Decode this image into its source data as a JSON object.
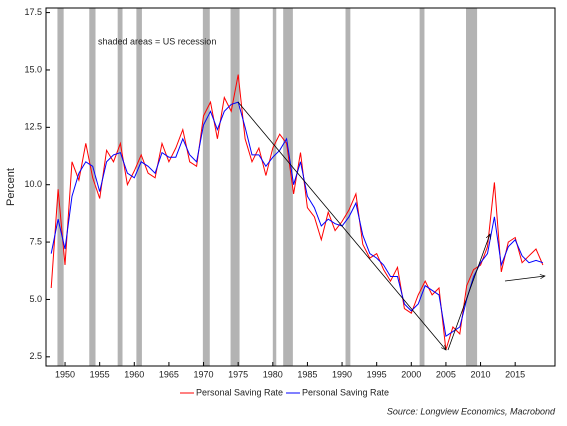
{
  "chart_data": {
    "type": "line",
    "y_label": "Percent",
    "annotation": "shaded areas = US recession",
    "source": "Source: Longview Economics, Macrobond",
    "x": [
      1948,
      1949,
      1950,
      1951,
      1952,
      1953,
      1954,
      1955,
      1956,
      1957,
      1958,
      1959,
      1960,
      1961,
      1962,
      1963,
      1964,
      1965,
      1966,
      1967,
      1968,
      1969,
      1970,
      1971,
      1972,
      1973,
      1974,
      1975,
      1976,
      1977,
      1978,
      1979,
      1980,
      1981,
      1982,
      1983,
      1984,
      1985,
      1986,
      1987,
      1988,
      1989,
      1990,
      1991,
      1992,
      1993,
      1994,
      1995,
      1996,
      1997,
      1998,
      1999,
      2000,
      2001,
      2002,
      2003,
      2004,
      2005,
      2006,
      2007,
      2008,
      2009,
      2010,
      2011,
      2012,
      2013,
      2014,
      2015,
      2016,
      2017,
      2018,
      2019
    ],
    "series": [
      {
        "name": "Personal Saving Rate",
        "color": "#ff0000",
        "values": [
          5.5,
          9.8,
          6.5,
          11.0,
          10.2,
          11.8,
          10.3,
          9.4,
          11.5,
          11.0,
          11.8,
          10.0,
          10.6,
          11.3,
          10.5,
          10.3,
          11.8,
          11.0,
          11.6,
          12.4,
          11.0,
          10.8,
          13.0,
          13.6,
          12.0,
          13.8,
          13.2,
          14.8,
          12.0,
          11.0,
          11.6,
          10.4,
          11.6,
          12.2,
          11.8,
          9.6,
          11.4,
          9.0,
          8.6,
          7.6,
          8.8,
          8.0,
          8.4,
          8.9,
          9.6,
          7.4,
          6.8,
          7.0,
          6.3,
          5.8,
          6.4,
          4.6,
          4.4,
          5.2,
          5.8,
          5.2,
          5.5,
          2.8,
          3.8,
          3.5,
          5.6,
          6.3,
          6.5,
          7.3,
          10.1,
          6.2,
          7.5,
          7.7,
          6.6,
          6.9,
          7.2,
          6.5
        ]
      },
      {
        "name": "Personal Saving Rate",
        "color": "#0000ff",
        "values": [
          7.0,
          8.5,
          7.2,
          9.5,
          10.5,
          11.0,
          10.8,
          9.7,
          11.0,
          11.3,
          11.4,
          10.5,
          10.3,
          11.0,
          10.8,
          10.5,
          11.4,
          11.2,
          11.2,
          12.0,
          11.3,
          11.0,
          12.6,
          13.2,
          12.4,
          13.2,
          13.5,
          13.6,
          12.5,
          11.3,
          11.3,
          10.8,
          11.2,
          11.5,
          12.0,
          10.0,
          11.0,
          9.5,
          9.0,
          8.2,
          8.5,
          8.3,
          8.2,
          8.6,
          9.2,
          7.8,
          7.0,
          6.8,
          6.5,
          6.0,
          6.0,
          4.8,
          4.5,
          4.8,
          5.6,
          5.4,
          5.2,
          3.4,
          3.6,
          3.8,
          5.0,
          6.0,
          6.6,
          7.0,
          8.6,
          6.5,
          7.3,
          7.6,
          6.9,
          6.6,
          6.7,
          6.6
        ]
      }
    ],
    "recessions": [
      [
        1948.9,
        1949.8
      ],
      [
        1953.5,
        1954.4
      ],
      [
        1957.6,
        1958.3
      ],
      [
        1960.3,
        1961.1
      ],
      [
        1969.9,
        1970.9
      ],
      [
        1973.9,
        1975.2
      ],
      [
        1980.0,
        1980.5
      ],
      [
        1981.5,
        1982.9
      ],
      [
        1990.5,
        1991.2
      ],
      [
        2001.2,
        2001.9
      ],
      [
        2007.9,
        2009.5
      ]
    ],
    "recession_color": "#b3b3b3",
    "xlim": [
      1947.25,
      2020.75
    ],
    "ylim": [
      2.1,
      17.7
    ],
    "xticks": [
      1950,
      1955,
      1960,
      1965,
      1970,
      1975,
      1980,
      1985,
      1990,
      1995,
      2000,
      2005,
      2010,
      2015
    ],
    "yticks": [
      2.5,
      {
        "value": 5,
        "label": "5.0"
      },
      7.5,
      {
        "value": 10,
        "label": "10.0"
      },
      12.5,
      {
        "value": 15,
        "label": "15.0"
      },
      17.5
    ]
  }
}
